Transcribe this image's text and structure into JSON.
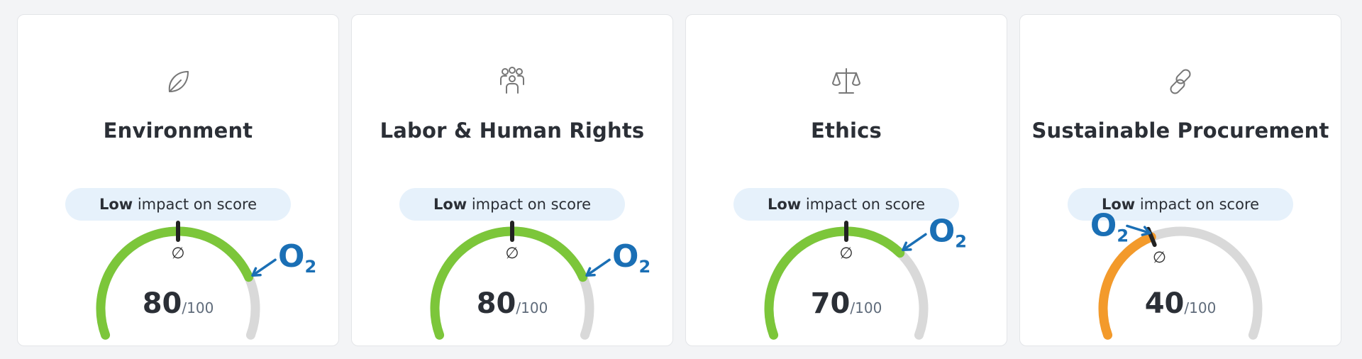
{
  "colors": {
    "track": "#d9d9d9",
    "good": "#7cc63a",
    "warn": "#f39a2b",
    "marker": "#222222",
    "o2": "#1a6fb5",
    "pill_bg": "#e6f1fb",
    "icon": "#777777"
  },
  "cards": [
    {
      "icon": "leaf-icon",
      "title": "Environment",
      "impact_level": "Low",
      "impact_text": " impact on score",
      "score": "80",
      "max": "/100",
      "score_fraction": 0.8,
      "avg_fraction": 0.5,
      "o2_fraction": 0.8,
      "avg_symbol": "∅",
      "o2_label": "O",
      "o2_sub": "2",
      "arc_color": "good"
    },
    {
      "icon": "team-icon",
      "title": "Labor & Human Rights",
      "impact_level": "Low",
      "impact_text": " impact on score",
      "score": "80",
      "max": "/100",
      "score_fraction": 0.8,
      "avg_fraction": 0.5,
      "o2_fraction": 0.8,
      "avg_symbol": "∅",
      "o2_label": "O",
      "o2_sub": "2",
      "arc_color": "good"
    },
    {
      "icon": "scale-icon",
      "title": "Ethics",
      "impact_level": "Low",
      "impact_text": " impact on score",
      "score": "70",
      "max": "/100",
      "score_fraction": 0.7,
      "avg_fraction": 0.5,
      "o2_fraction": 0.7,
      "avg_symbol": "∅",
      "o2_label": "O",
      "o2_sub": "2",
      "arc_color": "good"
    },
    {
      "icon": "link-icon",
      "title": "Sustainable Procurement",
      "impact_level": "Low",
      "impact_text": " impact on score",
      "score": "40",
      "max": "/100",
      "score_fraction": 0.4,
      "avg_fraction": 0.4,
      "o2_fraction": 0.4,
      "avg_symbol": "∅",
      "o2_label": "O",
      "o2_sub": "2",
      "arc_color": "warn"
    }
  ]
}
